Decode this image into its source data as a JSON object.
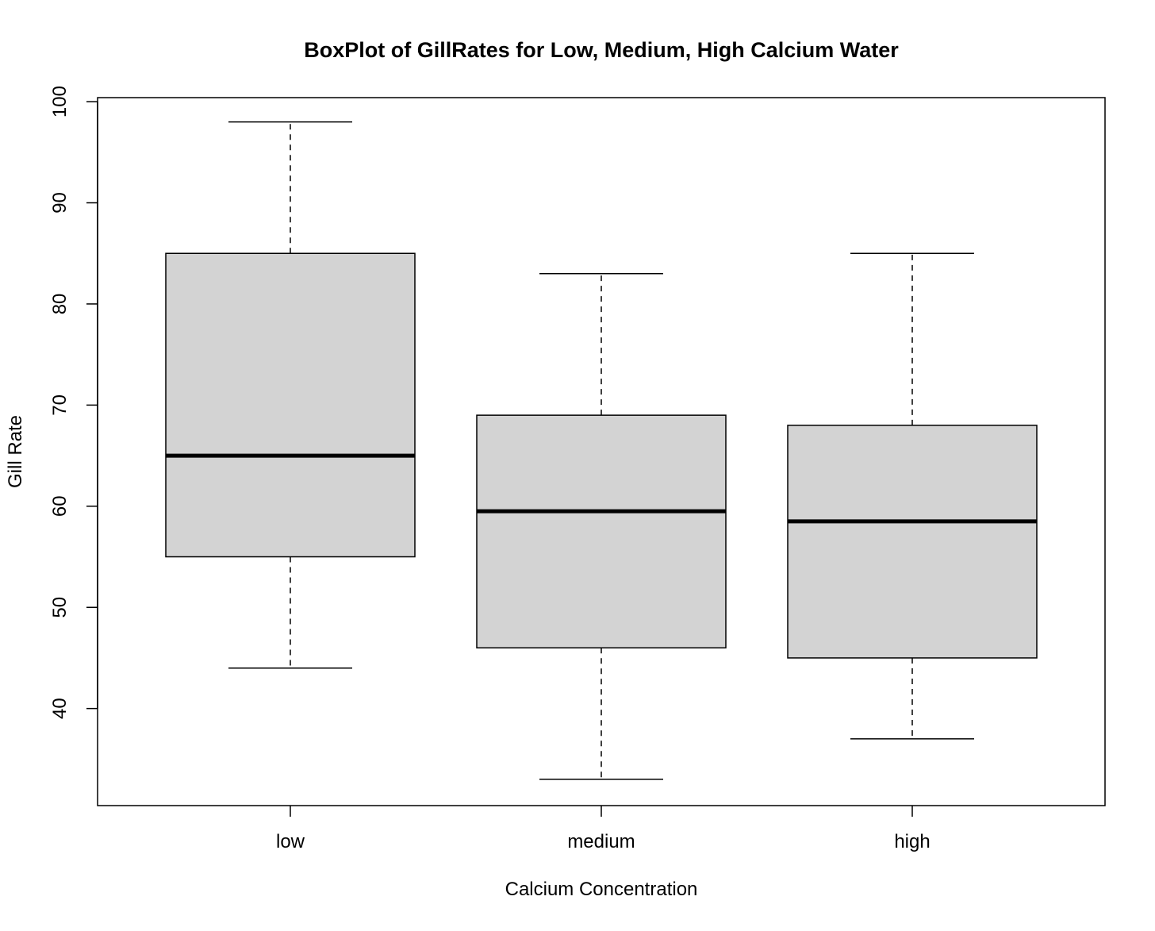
{
  "chart_data": {
    "type": "boxplot",
    "title": "BoxPlot of GillRates for Low, Medium, High Calcium Water",
    "xlabel": "Calcium Concentration",
    "ylabel": "Gill Rate",
    "ylim": [
      30.4,
      100.4
    ],
    "yticks": [
      40,
      50,
      60,
      70,
      80,
      90,
      100
    ],
    "categories": [
      "low",
      "medium",
      "high"
    ],
    "boxes": [
      {
        "category": "low",
        "whisker_low": 44,
        "q1": 55,
        "median": 65,
        "q3": 85,
        "whisker_high": 98
      },
      {
        "category": "medium",
        "whisker_low": 33,
        "q1": 46,
        "median": 59.5,
        "q3": 69,
        "whisker_high": 83
      },
      {
        "category": "high",
        "whisker_low": 37,
        "q1": 45,
        "median": 58.5,
        "q3": 68,
        "whisker_high": 85
      }
    ],
    "box_fill": "#d3d3d3",
    "grid": false,
    "legend": "none"
  }
}
